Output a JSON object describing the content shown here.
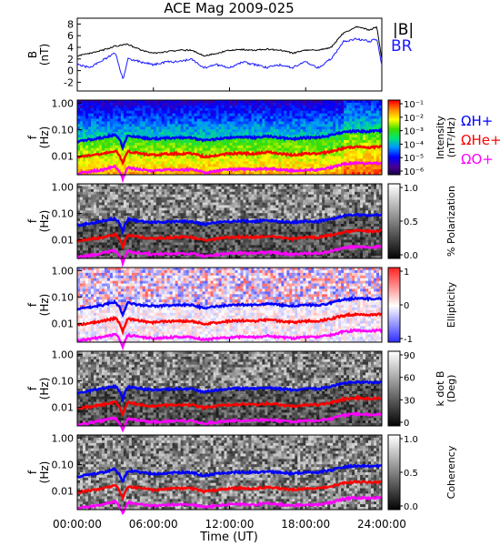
{
  "chart_data": {
    "type": "line",
    "title": "ACE Mag 2009-025",
    "x_ticks": [
      "00:00:00",
      "06:00:00",
      "12:00:00",
      "18:00:00",
      "24:00:00"
    ],
    "x_range_hours": [
      0,
      24
    ],
    "xlabel": "Time (UT)",
    "colors": {
      "b_total": "#000000",
      "b_r": "#1a1aff",
      "h_plus": "#0000ff",
      "he_plus": "#ff0000",
      "o_plus": "#ff00ff"
    },
    "field_panel": {
      "ylabel_main": "B",
      "ylabel_unit": "(nT)",
      "ylim": [
        -3.5,
        9
      ],
      "ticks": [
        "-2",
        "0",
        "2",
        "4",
        "6",
        "8"
      ],
      "tick_values": [
        -2,
        0,
        2,
        4,
        6,
        8
      ],
      "legend": [
        "|B|",
        "BR"
      ],
      "series": [
        {
          "name": "|B|",
          "x_hours": [
            0,
            1,
            2,
            3,
            4,
            5,
            6,
            7,
            8,
            9,
            10,
            11,
            12,
            13,
            14,
            15,
            16,
            17,
            18,
            19,
            20,
            21,
            22,
            23,
            23.6,
            24
          ],
          "values": [
            2.5,
            3.0,
            3.5,
            4.2,
            4.5,
            3.5,
            3.0,
            3.2,
            3.5,
            3.5,
            2.5,
            3.0,
            3.5,
            3.6,
            3.5,
            3.7,
            3.5,
            3.0,
            3.5,
            3.5,
            4.0,
            6.5,
            7.5,
            7.0,
            7.5,
            2.0
          ]
        },
        {
          "name": "BR",
          "x_hours": [
            0,
            1,
            2,
            3,
            3.6,
            4,
            5,
            6,
            7,
            8,
            9,
            10,
            11,
            12,
            13,
            14,
            15,
            16,
            17,
            18,
            19,
            20,
            21,
            22,
            23,
            23.6,
            24
          ],
          "values": [
            1.0,
            0.5,
            1.8,
            3.0,
            -1.5,
            2.0,
            1.5,
            1.0,
            1.5,
            1.5,
            2.0,
            0.5,
            1.0,
            0.5,
            1.5,
            1.0,
            0.5,
            1.0,
            0.5,
            1.5,
            0.5,
            2.0,
            5.0,
            5.5,
            5.0,
            5.5,
            1.0
          ]
        }
      ]
    },
    "cyclotron": {
      "x_hours": [
        0,
        1,
        2,
        3,
        3.6,
        4,
        5,
        6,
        7,
        8,
        9,
        10,
        11,
        12,
        13,
        14,
        15,
        16,
        17,
        18,
        19,
        20,
        21,
        22,
        23,
        24
      ],
      "series": [
        {
          "name": "ΩH+",
          "values": [
            0.035,
            0.042,
            0.05,
            0.065,
            0.02,
            0.06,
            0.05,
            0.045,
            0.048,
            0.05,
            0.05,
            0.038,
            0.045,
            0.05,
            0.052,
            0.05,
            0.055,
            0.05,
            0.045,
            0.05,
            0.05,
            0.06,
            0.08,
            0.09,
            0.085,
            0.09
          ]
        },
        {
          "name": "ΩHe+",
          "values": [
            0.009,
            0.0105,
            0.0125,
            0.016,
            0.005,
            0.015,
            0.0125,
            0.011,
            0.012,
            0.0125,
            0.0125,
            0.0095,
            0.011,
            0.0125,
            0.013,
            0.0125,
            0.014,
            0.0125,
            0.011,
            0.0125,
            0.0125,
            0.015,
            0.02,
            0.0225,
            0.021,
            0.0225
          ]
        },
        {
          "name": "ΩO+",
          "values": [
            0.0022,
            0.0026,
            0.0031,
            0.004,
            0.0013,
            0.0037,
            0.0031,
            0.0028,
            0.003,
            0.0031,
            0.0031,
            0.0024,
            0.0028,
            0.0031,
            0.0032,
            0.0031,
            0.0034,
            0.0031,
            0.0028,
            0.0031,
            0.0031,
            0.0037,
            0.005,
            0.0056,
            0.0053,
            0.0056
          ]
        }
      ]
    },
    "spectrogram_panels": [
      {
        "key": "intensity",
        "ylabel_main": "f",
        "ylabel_unit": "(Hz)",
        "y_ticks": [
          "1.00",
          "0.10",
          "0.01"
        ],
        "colorbar_label": "Intensity",
        "colorbar_unit": "(nT²/Hz)",
        "colorbar_ticks": [
          "10⁻¹",
          "10⁻²",
          "10⁻³",
          "10⁻⁴",
          "10⁻⁵",
          "10⁻⁶"
        ],
        "colorscale": "rainbow",
        "ion_labels": [
          "ΩH+",
          "ΩHe+",
          "ΩO+"
        ]
      },
      {
        "key": "polarization",
        "ylabel_main": "f",
        "ylabel_unit": "(Hz)",
        "y_ticks": [
          "1.00",
          "0.10",
          "0.01"
        ],
        "colorbar_label": "% Polarization",
        "colorbar_ticks": [
          "1.0",
          "0.5",
          "0.0"
        ],
        "colorscale": "gray"
      },
      {
        "key": "ellipticity",
        "ylabel_main": "f",
        "ylabel_unit": "(Hz)",
        "y_ticks": [
          "1.00",
          "0.10",
          "0.01"
        ],
        "colorbar_label": "Ellipticity",
        "colorbar_ticks": [
          "1",
          "0",
          "-1"
        ],
        "colorscale": "bwr"
      },
      {
        "key": "kdotb",
        "ylabel_main": "f",
        "ylabel_unit": "(Hz)",
        "y_ticks": [
          "1.00",
          "0.10",
          "0.01"
        ],
        "colorbar_label": "k dot B",
        "colorbar_unit": "(Deg)",
        "colorbar_ticks": [
          "90",
          "60",
          "30",
          "0"
        ],
        "colorscale": "gray"
      },
      {
        "key": "coherency",
        "ylabel_main": "f",
        "ylabel_unit": "(Hz)",
        "y_ticks": [
          "1.00",
          "0.10",
          "0.01"
        ],
        "colorbar_label": "Coherency",
        "colorbar_ticks": [
          "1.0",
          "0.5",
          "0.0"
        ],
        "colorscale": "gray"
      }
    ]
  }
}
